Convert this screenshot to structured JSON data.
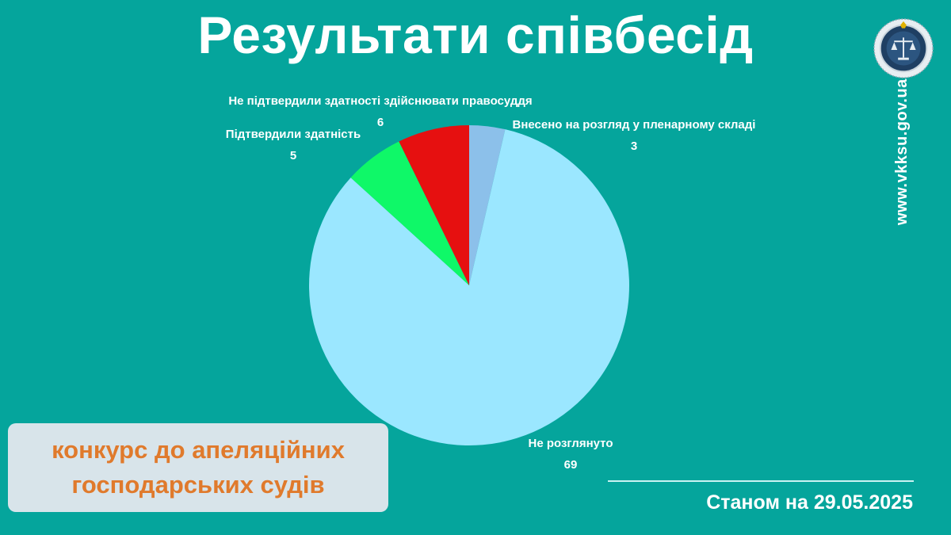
{
  "title": "Результати співбесід",
  "competition": {
    "line1": "конкурс до апеляційних",
    "line2": "господарських судів"
  },
  "as_of": "Станом на 29.05.2025",
  "site": "www.vkksu.gov.ua",
  "colors": {
    "background": "#05a59c",
    "not_considered": "#9be7ff",
    "confirmed": "#0ff868",
    "not_confirmed": "#e61010",
    "plenary": "#8cc0ea",
    "badge_text": "#e07a2c"
  },
  "chart_data": {
    "type": "pie",
    "title": "Результати співбесід",
    "slices": [
      {
        "name": "Внесено на розгляд у пленарному складі",
        "value": 3,
        "color": "#8cc0ea"
      },
      {
        "name": "Не розглянуто",
        "value": 69,
        "color": "#9be7ff"
      },
      {
        "name": "Підтвердили здатність",
        "value": 5,
        "color": "#0ff868"
      },
      {
        "name": "Не підтвердили здатності здійснювати правосуддя",
        "value": 6,
        "color": "#e61010"
      }
    ],
    "start_angle": "12 o'clock",
    "direction": "clockwise",
    "legend": "none"
  }
}
